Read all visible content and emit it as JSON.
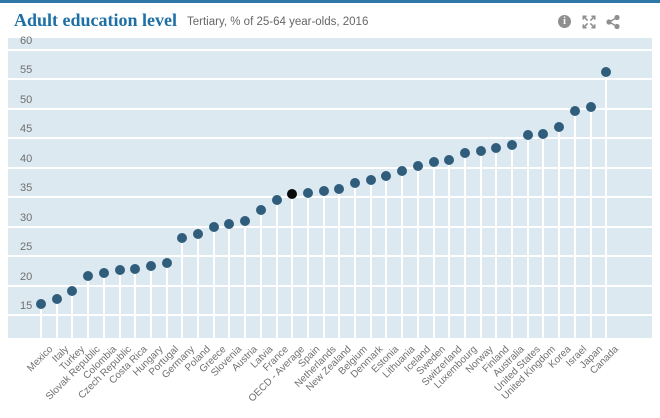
{
  "header": {
    "title": "Adult education level",
    "subtitle": "Tertiary, % of 25-64 year-olds, 2016",
    "icons": [
      "info-icon",
      "fullscreen-icon",
      "share-icon"
    ]
  },
  "colors": {
    "accent_bar": "#2e77a8",
    "title_text": "#1d6fa5",
    "subtitle_text": "#666666",
    "icon_gray": "#8f8f8f",
    "plot_background": "#dce9f1",
    "gridline": "#ffffff",
    "axis_label": "#6f6f6f",
    "dot": "#2f5d7b",
    "highlight_dot": "#0b0b0b"
  },
  "chart_data": {
    "type": "scatter",
    "title": "Adult education level",
    "subtitle": "Tertiary, % of 25-64 year-olds, 2016",
    "xlabel": "",
    "ylabel": "% of 25-64 year-olds",
    "grid": true,
    "legend": false,
    "ylim": [
      11,
      62
    ],
    "yticks": [
      15,
      20,
      25,
      30,
      35,
      40,
      45,
      50,
      55,
      60
    ],
    "highlight_category": "OECD - Average",
    "highlight_index": 16,
    "categories": [
      "Mexico",
      "Italy",
      "Turkey",
      "Slovak Republic",
      "Colombia",
      "Czech Republic",
      "Costa Rica",
      "Hungary",
      "Portugal",
      "Germany",
      "Poland",
      "Greece",
      "Slovenia",
      "Austria",
      "Latvia",
      "France",
      "OECD - Average",
      "Spain",
      "Netherlands",
      "New Zealand",
      "Belgium",
      "Denmark",
      "Estonia",
      "Lithuania",
      "Iceland",
      "Sweden",
      "Switzerland",
      "Luxembourg",
      "Norway",
      "Finland",
      "Australia",
      "United States",
      "United Kingdom",
      "Korea",
      "Israel",
      "Japan",
      "Canada"
    ],
    "values": [
      16.8,
      17.7,
      19.0,
      21.7,
      22.1,
      22.6,
      22.8,
      23.4,
      23.8,
      28.1,
      28.7,
      30.0,
      30.5,
      31.0,
      32.9,
      34.5,
      35.5,
      35.7,
      36.0,
      36.4,
      37.4,
      38.0,
      38.6,
      39.5,
      40.3,
      41.0,
      41.4,
      42.5,
      42.9,
      43.4,
      43.8,
      45.5,
      45.8,
      46.9,
      49.7,
      50.4,
      56.2
    ]
  }
}
